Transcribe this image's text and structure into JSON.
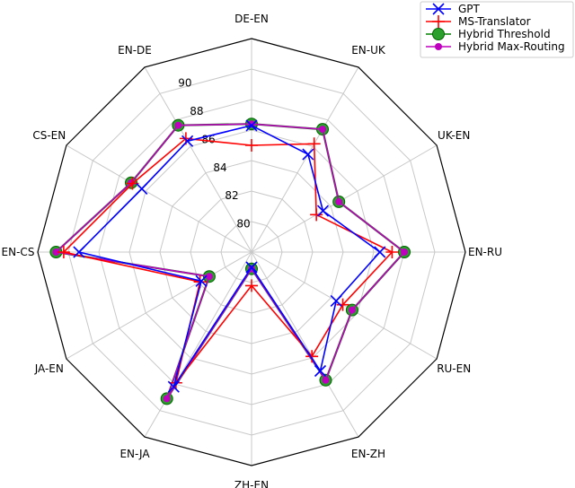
{
  "chart_data": {
    "type": "radar",
    "axes": [
      "DE-EN",
      "EN-UK",
      "UK-EN",
      "EN-RU",
      "RU-EN",
      "EN-ZH",
      "ZH-EN",
      "EN-JA",
      "JA-EN",
      "EN-CS",
      "CS-EN",
      "EN-DE"
    ],
    "radial_ticks": [
      80,
      82,
      84,
      86,
      88,
      90
    ],
    "r_range": [
      78,
      92
    ],
    "grid": true,
    "legend_position": "top-right",
    "series": [
      {
        "name": "GPT",
        "color": "#0000ff",
        "marker": "x",
        "values": [
          86.3,
          85.4,
          83.4,
          86.4,
          84.4,
          87.0,
          79.0,
          88.2,
          81.8,
          89.3,
          86.3,
          86.4
        ]
      },
      {
        "name": "MS-Translator",
        "color": "#ff0000",
        "marker": "+",
        "values": [
          85.0,
          86.2,
          82.9,
          87.2,
          84.9,
          85.9,
          80.2,
          87.9,
          81.9,
          90.3,
          87.0,
          86.6
        ]
      },
      {
        "name": "Hybrid Threshold",
        "color": "#008000",
        "marker": "o",
        "values": [
          86.4,
          87.3,
          84.6,
          88.0,
          85.6,
          87.7,
          79.1,
          89.1,
          81.2,
          90.8,
          87.1,
          87.6
        ]
      },
      {
        "name": "Hybrid Max-Routing",
        "color": "#bf00bf",
        "marker": "o",
        "values": [
          86.4,
          87.3,
          84.6,
          88.0,
          85.6,
          87.7,
          79.1,
          89.1,
          81.2,
          90.8,
          87.1,
          87.6
        ]
      }
    ]
  }
}
